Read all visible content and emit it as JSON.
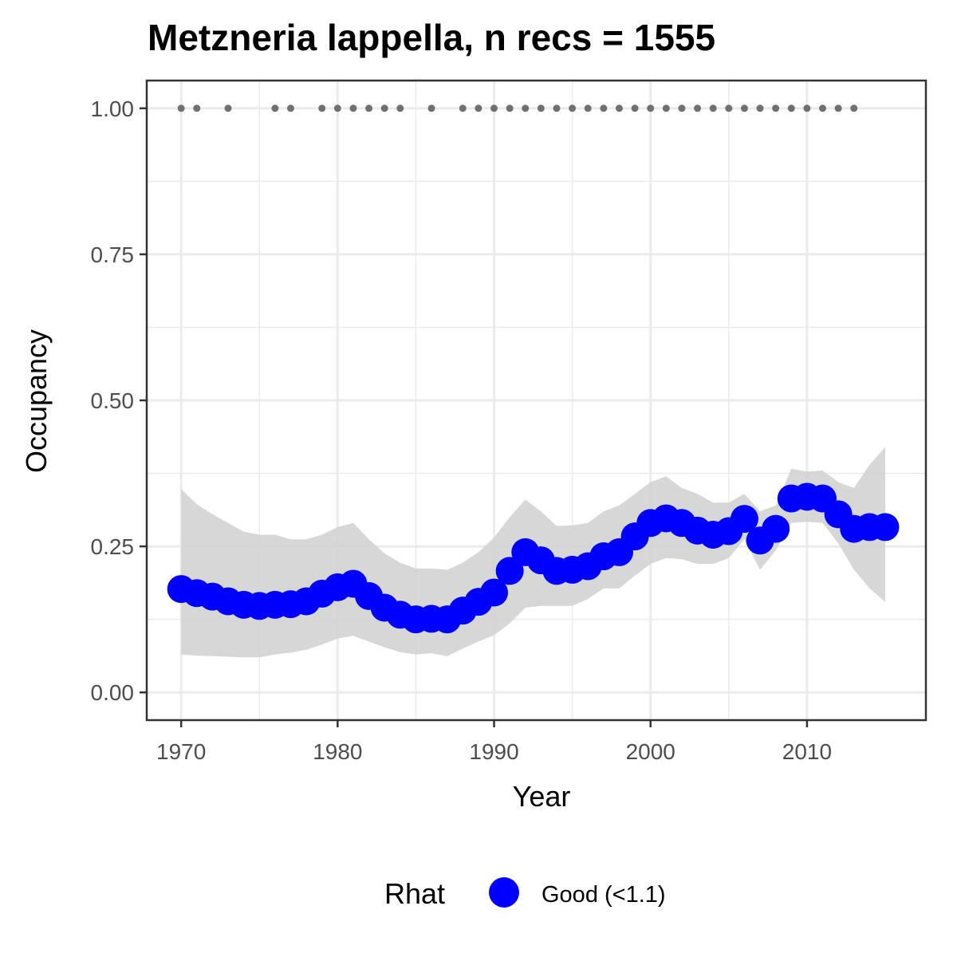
{
  "chart_data": {
    "type": "line",
    "title": "Metzneria lappella, n recs = 1555",
    "xlabel": "Year",
    "ylabel": "Occupancy",
    "xlim": [
      1967.8,
      1017.6
    ],
    "ylim": [
      -0.0475,
      1.0475
    ],
    "x_ticks": [
      1970,
      1980,
      1990,
      2000,
      2010
    ],
    "x_tick_labels": [
      "1970",
      "1980",
      "1990",
      "2000",
      "2010"
    ],
    "y_ticks": [
      0,
      0.25,
      0.5,
      0.75,
      1.0
    ],
    "y_tick_labels": [
      "0.00",
      "0.25",
      "0.50",
      "0.75",
      "1.00"
    ],
    "grid": true,
    "colors": {
      "series": "#0000ff",
      "ribbon": "#d3d3d3",
      "record_points": "#707070",
      "panel_border": "#333333",
      "grid": "#ebebeb"
    },
    "series": [
      {
        "x": [
          1970,
          1971,
          1972,
          1973,
          1974,
          1975,
          1976,
          1977,
          1978,
          1979,
          1980,
          1981,
          1982,
          1983,
          1984,
          1985,
          1986,
          1987,
          1988,
          1989,
          1990,
          1991,
          1992,
          1993,
          1994,
          1995,
          1996,
          1997,
          1998,
          1999,
          2000,
          2001,
          2002,
          2003,
          2004,
          2005,
          2006,
          2007,
          2008,
          2009,
          2010,
          2011,
          2012,
          2013,
          2014,
          2015
        ],
        "values": [
          0.177,
          0.17,
          0.164,
          0.156,
          0.15,
          0.148,
          0.15,
          0.151,
          0.156,
          0.169,
          0.18,
          0.186,
          0.165,
          0.145,
          0.133,
          0.125,
          0.126,
          0.125,
          0.14,
          0.155,
          0.171,
          0.208,
          0.24,
          0.226,
          0.208,
          0.21,
          0.216,
          0.233,
          0.24,
          0.267,
          0.29,
          0.298,
          0.29,
          0.277,
          0.27,
          0.276,
          0.297,
          0.26,
          0.28,
          0.332,
          0.335,
          0.332,
          0.305,
          0.28,
          0.283,
          0.283
        ],
        "lower": [
          0.065,
          0.063,
          0.062,
          0.061,
          0.06,
          0.06,
          0.065,
          0.068,
          0.073,
          0.082,
          0.092,
          0.097,
          0.087,
          0.077,
          0.069,
          0.065,
          0.067,
          0.062,
          0.075,
          0.087,
          0.098,
          0.118,
          0.145,
          0.148,
          0.148,
          0.148,
          0.16,
          0.178,
          0.178,
          0.2,
          0.22,
          0.23,
          0.228,
          0.22,
          0.22,
          0.23,
          0.262,
          0.21,
          0.243,
          0.29,
          0.292,
          0.29,
          0.255,
          0.21,
          0.178,
          0.155
        ],
        "upper": [
          0.348,
          0.322,
          0.305,
          0.29,
          0.275,
          0.27,
          0.27,
          0.262,
          0.262,
          0.27,
          0.283,
          0.29,
          0.262,
          0.238,
          0.222,
          0.212,
          0.212,
          0.21,
          0.222,
          0.24,
          0.265,
          0.3,
          0.33,
          0.31,
          0.285,
          0.286,
          0.29,
          0.31,
          0.32,
          0.34,
          0.36,
          0.37,
          0.35,
          0.34,
          0.325,
          0.325,
          0.34,
          0.31,
          0.32,
          0.383,
          0.378,
          0.38,
          0.36,
          0.35,
          0.39,
          0.42
        ]
      }
    ],
    "records_observed": {
      "value": 1.0,
      "years": [
        1970,
        1971,
        1973,
        1976,
        1977,
        1979,
        1980,
        1981,
        1982,
        1983,
        1984,
        1986,
        1988,
        1989,
        1990,
        1991,
        1992,
        1993,
        1994,
        1995,
        1996,
        1997,
        1998,
        1999,
        2000,
        2001,
        2002,
        2003,
        2004,
        2005,
        2006,
        2007,
        2008,
        2009,
        2010,
        2011,
        2012,
        2013
      ]
    },
    "legend": {
      "title": "Rhat",
      "entries": [
        "Good (<1.1)"
      ],
      "placement": "bottom"
    }
  }
}
